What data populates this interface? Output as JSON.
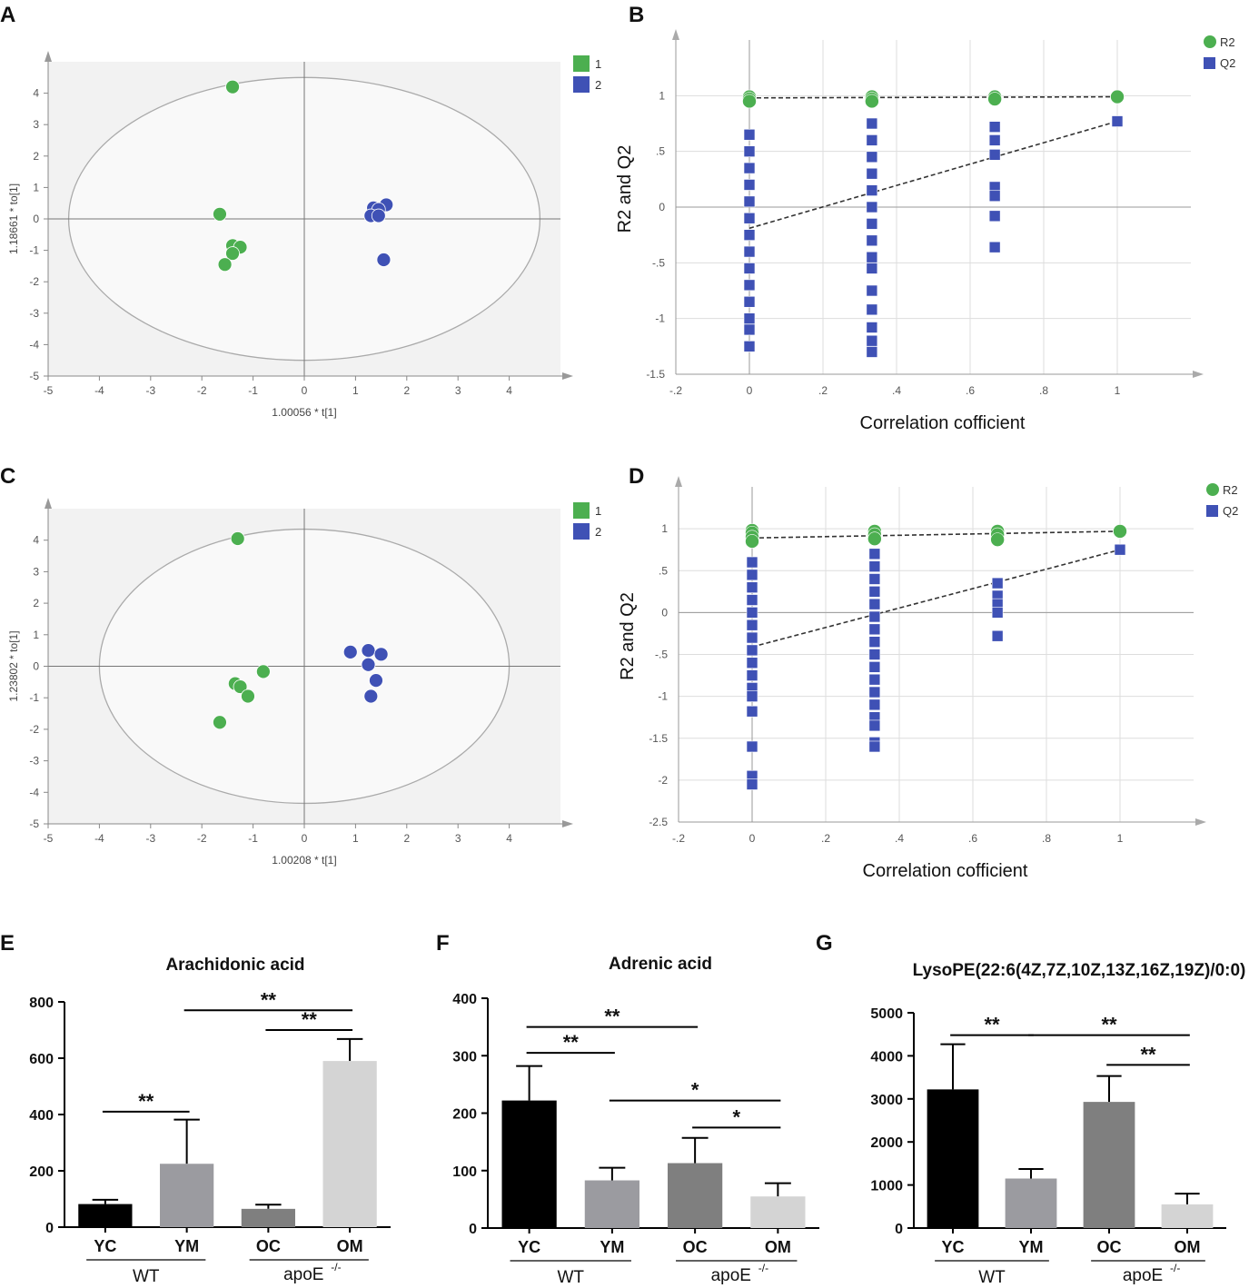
{
  "panels": {
    "A": "A",
    "B": "B",
    "C": "C",
    "D": "D",
    "E": "E",
    "F": "F",
    "G": "G"
  },
  "colors": {
    "green": "#4caf50",
    "blue": "#3f51b5",
    "grid": "#dddddd",
    "plotbg": "#f2f2f2"
  },
  "chart_data": [
    {
      "id": "A",
      "type": "scatter",
      "title": "",
      "xlabel": "1.00056 * t[1]",
      "ylabel": "1.18661 * to[1]",
      "xlim": [
        -5,
        5
      ],
      "ylim": [
        -5,
        5
      ],
      "xticks": [
        -5,
        -4,
        -3,
        -2,
        -1,
        0,
        1,
        2,
        3,
        4
      ],
      "yticks": [
        -5,
        -4,
        -3,
        -2,
        -1,
        0,
        1,
        2,
        3,
        4
      ],
      "ellipse": {
        "rx": 4.6,
        "ry": 4.5
      },
      "legend": [
        "1",
        "2"
      ],
      "series": [
        {
          "name": "1",
          "color": "green",
          "points": [
            [
              -1.4,
              4.2
            ],
            [
              -1.65,
              0.15
            ],
            [
              -1.4,
              -0.85
            ],
            [
              -1.25,
              -0.9
            ],
            [
              -1.4,
              -1.1
            ],
            [
              -1.55,
              -1.45
            ]
          ]
        },
        {
          "name": "2",
          "color": "blue",
          "points": [
            [
              1.6,
              0.45
            ],
            [
              1.35,
              0.35
            ],
            [
              1.45,
              0.3
            ],
            [
              1.3,
              0.1
            ],
            [
              1.45,
              0.1
            ],
            [
              1.55,
              -1.3
            ]
          ]
        }
      ]
    },
    {
      "id": "B",
      "type": "scatter",
      "xlabel": "Correlation cofficient",
      "ylabel": "R2 and Q2",
      "xlim": [
        -0.2,
        1.2
      ],
      "ylim": [
        -1.5,
        1.5
      ],
      "xticks": [
        -0.2,
        0,
        0.2,
        0.4,
        0.6,
        0.8,
        1
      ],
      "yticks": [
        -1.5,
        -1,
        -0.5,
        0,
        0.5,
        1
      ],
      "legend": [
        "R2",
        "Q2"
      ],
      "r2": [
        [
          0,
          0.99
        ],
        [
          0,
          0.97
        ],
        [
          0,
          0.95
        ],
        [
          0.333,
          0.99
        ],
        [
          0.333,
          0.97
        ],
        [
          0.333,
          0.95
        ],
        [
          0.667,
          0.99
        ],
        [
          0.667,
          0.97
        ],
        [
          1,
          0.99
        ]
      ],
      "q2_columns": [
        {
          "x": 0,
          "values": [
            0.65,
            0.5,
            0.35,
            0.2,
            0.05,
            -0.1,
            -0.25,
            -0.4,
            -0.55,
            -0.7,
            -0.85,
            -1.0,
            -1.1,
            -1.25
          ]
        },
        {
          "x": 0.333,
          "values": [
            0.75,
            0.6,
            0.45,
            0.3,
            0.15,
            0.0,
            -0.15,
            -0.3,
            -0.45,
            -0.55,
            -0.75,
            -0.92,
            -1.08,
            -1.2,
            -1.3
          ]
        },
        {
          "x": 0.667,
          "values": [
            0.72,
            0.6,
            0.47,
            0.18,
            0.1,
            -0.08,
            -0.36
          ]
        },
        {
          "x": 1,
          "values": [
            0.77
          ]
        }
      ],
      "r2_line": [
        [
          0,
          0.98
        ],
        [
          1,
          0.99
        ]
      ],
      "q2_line": [
        [
          0,
          -0.19
        ],
        [
          1,
          0.77
        ]
      ]
    },
    {
      "id": "C",
      "type": "scatter",
      "xlabel": "1.00208 * t[1]",
      "ylabel": "1.23802 * to[1]",
      "xlim": [
        -5,
        5
      ],
      "ylim": [
        -5,
        5
      ],
      "xticks": [
        -5,
        -4,
        -3,
        -2,
        -1,
        0,
        1,
        2,
        3,
        4
      ],
      "yticks": [
        -5,
        -4,
        -3,
        -2,
        -1,
        0,
        1,
        2,
        3,
        4
      ],
      "ellipse": {
        "rx": 4.0,
        "ry": 4.35
      },
      "legend": [
        "1",
        "2"
      ],
      "series": [
        {
          "name": "1",
          "color": "green",
          "points": [
            [
              -1.3,
              4.05
            ],
            [
              -0.8,
              -0.17
            ],
            [
              -1.35,
              -0.55
            ],
            [
              -1.25,
              -0.65
            ],
            [
              -1.1,
              -0.95
            ],
            [
              -1.65,
              -1.78
            ]
          ]
        },
        {
          "name": "2",
          "color": "blue",
          "points": [
            [
              0.9,
              0.45
            ],
            [
              1.25,
              0.5
            ],
            [
              1.5,
              0.38
            ],
            [
              1.25,
              0.05
            ],
            [
              1.4,
              -0.45
            ],
            [
              1.3,
              -0.95
            ]
          ]
        }
      ]
    },
    {
      "id": "D",
      "type": "scatter",
      "xlabel": "Correlation cofficient",
      "ylabel": "R2 and Q2",
      "xlim": [
        -0.2,
        1.2
      ],
      "ylim": [
        -2.5,
        1.5
      ],
      "xticks": [
        -0.2,
        0,
        0.2,
        0.4,
        0.6,
        0.8,
        1
      ],
      "yticks": [
        -2.5,
        -2,
        -1.5,
        -1,
        -0.5,
        0,
        0.5,
        1
      ],
      "legend": [
        "R2",
        "Q2"
      ],
      "r2": [
        [
          0,
          0.98
        ],
        [
          0,
          0.95
        ],
        [
          0,
          0.9
        ],
        [
          0,
          0.85
        ],
        [
          0.333,
          0.97
        ],
        [
          0.333,
          0.93
        ],
        [
          0.333,
          0.88
        ],
        [
          0.667,
          0.97
        ],
        [
          0.667,
          0.93
        ],
        [
          0.667,
          0.87
        ],
        [
          1,
          0.97
        ]
      ],
      "q2_columns": [
        {
          "x": 0,
          "values": [
            0.6,
            0.45,
            0.3,
            0.15,
            0.0,
            -0.15,
            -0.3,
            -0.45,
            -0.6,
            -0.75,
            -0.9,
            -1.0,
            -1.18,
            -1.6,
            -1.95,
            -2.05
          ]
        },
        {
          "x": 0.333,
          "values": [
            0.7,
            0.55,
            0.4,
            0.25,
            0.1,
            -0.05,
            -0.2,
            -0.35,
            -0.5,
            -0.65,
            -0.8,
            -0.95,
            -1.1,
            -1.25,
            -1.35,
            -1.55,
            -1.6
          ]
        },
        {
          "x": 0.667,
          "values": [
            0.35,
            0.2,
            0.1,
            0.0,
            -0.28
          ]
        },
        {
          "x": 1,
          "values": [
            0.75
          ]
        }
      ],
      "r2_line": [
        [
          0,
          0.89
        ],
        [
          1,
          0.97
        ]
      ],
      "q2_line": [
        [
          0,
          -0.41
        ],
        [
          1,
          0.75
        ]
      ]
    },
    {
      "id": "E",
      "type": "bar",
      "title": "Arachidonic acid",
      "categories": [
        "YC",
        "YM",
        "OC",
        "OM"
      ],
      "values": [
        82,
        225,
        65,
        590
      ],
      "errors": [
        15,
        157,
        15,
        78
      ],
      "ylim": [
        0,
        800
      ],
      "yticks": [
        0,
        200,
        400,
        600,
        800
      ],
      "groups": [
        "WT",
        "apoE"
      ],
      "significance": [
        {
          "from": 0,
          "to": 1,
          "label": "**",
          "y": 410
        },
        {
          "from": 1,
          "to": 3,
          "label": "**",
          "y": 770
        },
        {
          "from": 2,
          "to": 3,
          "label": "**",
          "y": 700
        }
      ]
    },
    {
      "id": "F",
      "type": "bar",
      "title": "Adrenic acid",
      "categories": [
        "YC",
        "YM",
        "OC",
        "OM"
      ],
      "values": [
        222,
        83,
        113,
        55
      ],
      "errors": [
        60,
        22,
        44,
        23
      ],
      "ylim": [
        0,
        400
      ],
      "yticks": [
        0,
        100,
        200,
        300,
        400
      ],
      "groups": [
        "WT",
        "apoE"
      ],
      "significance": [
        {
          "from": 0,
          "to": 1,
          "label": "**",
          "y": 305
        },
        {
          "from": 0,
          "to": 2,
          "label": "**",
          "y": 350
        },
        {
          "from": 1,
          "to": 3,
          "label": "*",
          "y": 222
        },
        {
          "from": 2,
          "to": 3,
          "label": "*",
          "y": 175
        }
      ]
    },
    {
      "id": "G",
      "type": "bar",
      "title": "LysoPE(22:6(4Z,7Z,10Z,13Z,16Z,19Z)/0:0)",
      "categories": [
        "YC",
        "YM",
        "OC",
        "OM"
      ],
      "values": [
        3220,
        1150,
        2930,
        550
      ],
      "errors": [
        1050,
        220,
        600,
        250
      ],
      "ylim": [
        0,
        5000
      ],
      "yticks": [
        0,
        1000,
        2000,
        3000,
        4000,
        5000
      ],
      "groups": [
        "WT",
        "apoE"
      ],
      "significance": [
        {
          "from": 0,
          "to": 1,
          "label": "**",
          "y": 4480
        },
        {
          "from": 1,
          "to": 3,
          "label": "**",
          "y": 4480
        },
        {
          "from": 2,
          "to": 3,
          "label": "**",
          "y": 3790
        }
      ]
    }
  ]
}
